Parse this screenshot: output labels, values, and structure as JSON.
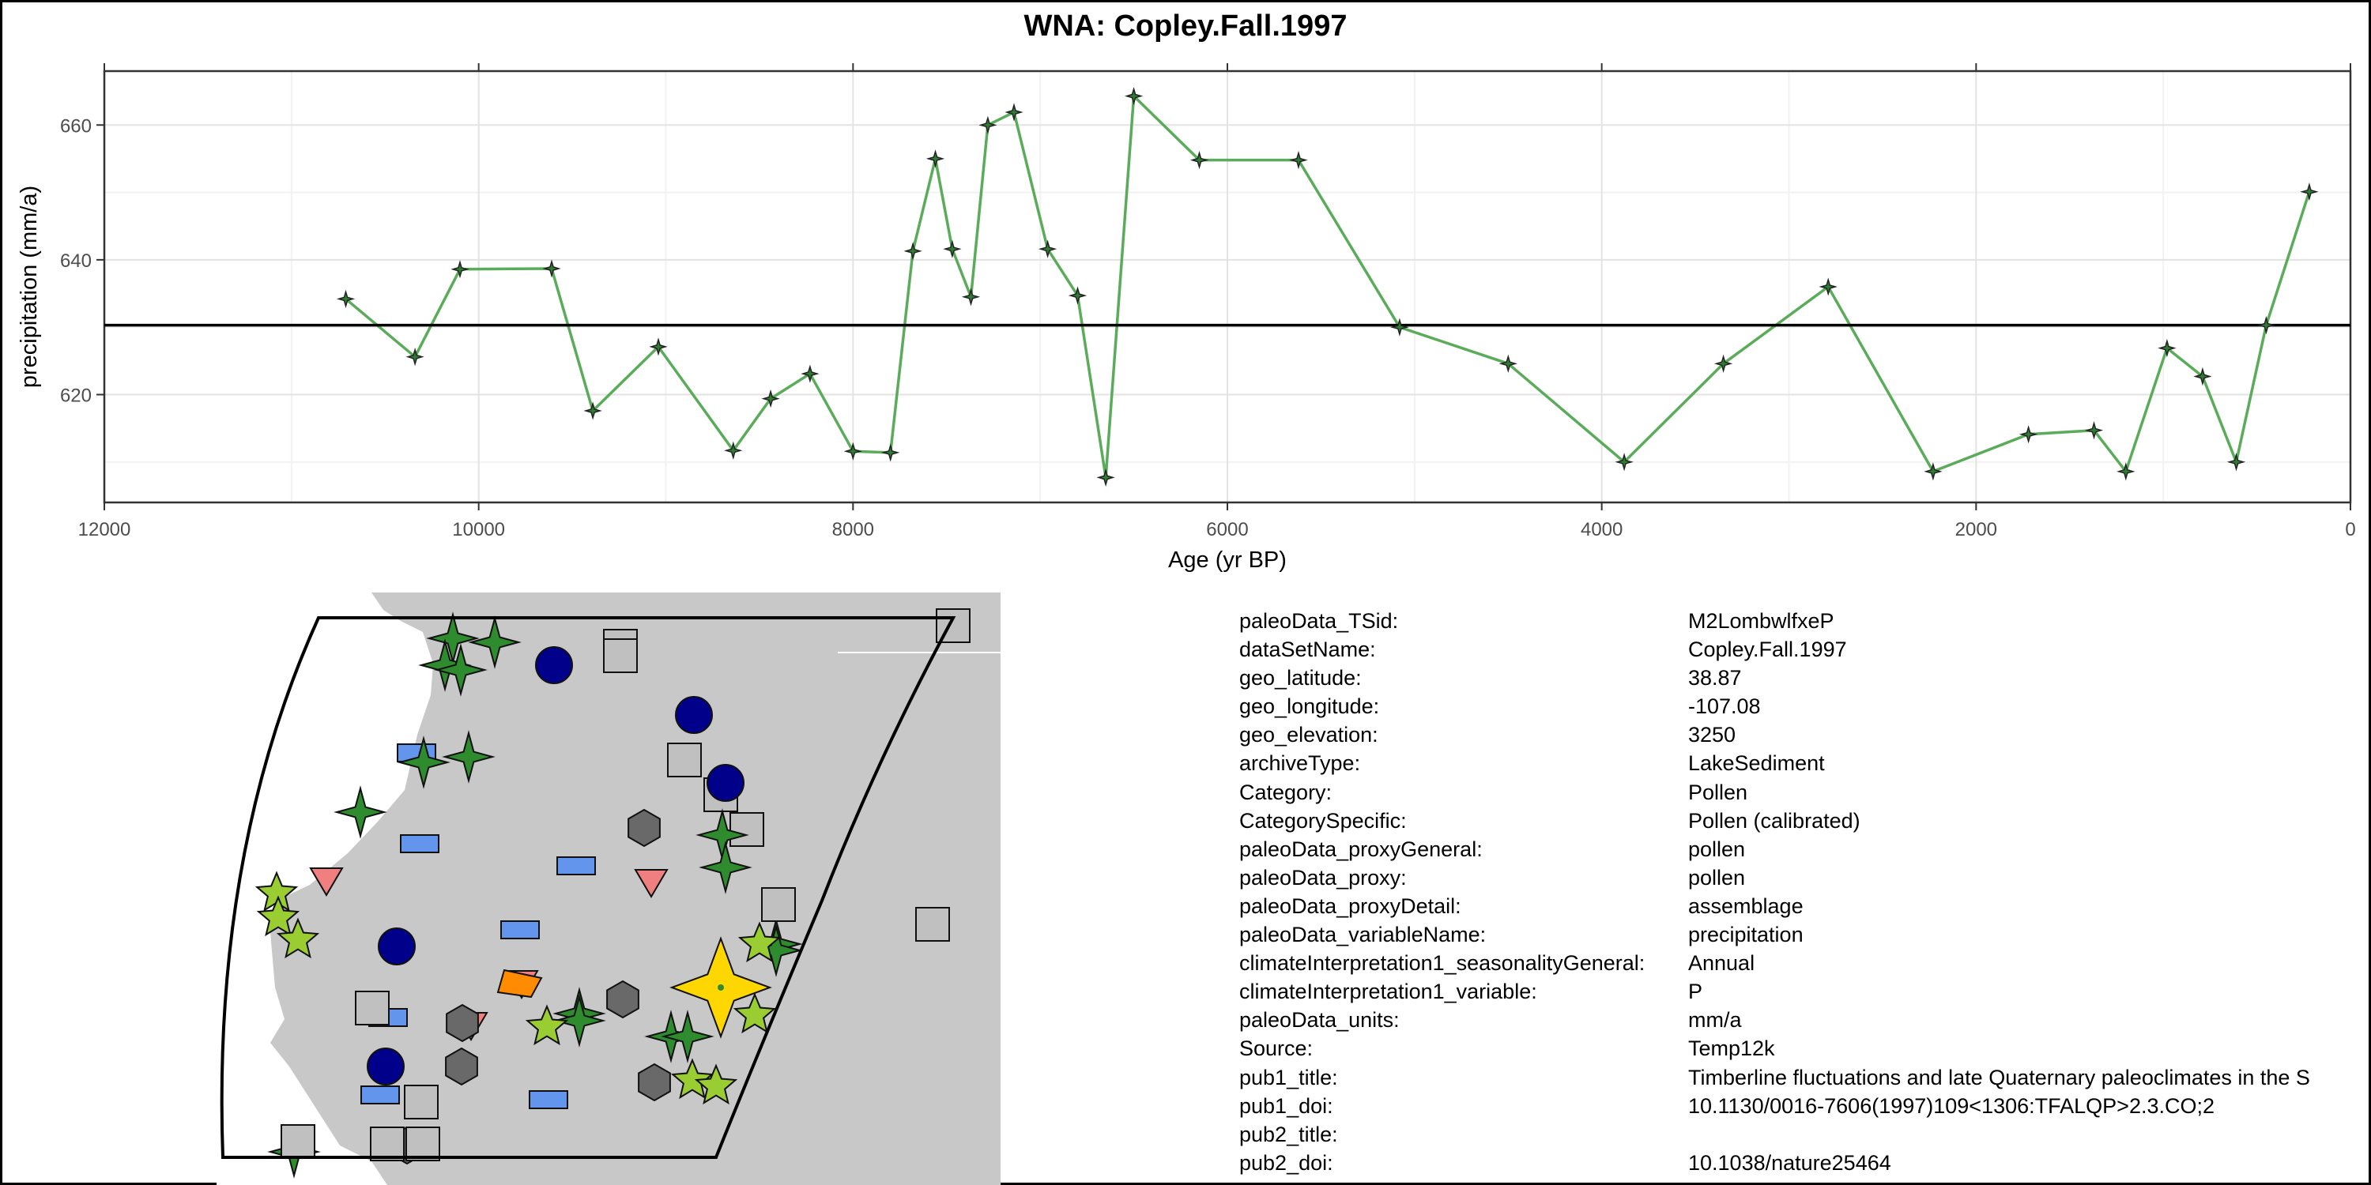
{
  "chart_data": {
    "type": "line",
    "title": "WNA: Copley.Fall.1997",
    "xlabel": "Age (yr BP)",
    "ylabel": "precipitation (mm/a)",
    "xlim": [
      12000,
      0
    ],
    "xaxis_reversed": true,
    "ylim": [
      604,
      668
    ],
    "x_ticks": [
      12000,
      10000,
      8000,
      6000,
      4000,
      2000,
      0
    ],
    "y_ticks": [
      620,
      640,
      660
    ],
    "grid": true,
    "reference_line_y": 630.3,
    "series": [
      {
        "color": "#5aab5a",
        "marker_color": "#2e7d32",
        "x": [
          10710,
          10340,
          10100,
          9610,
          9390,
          9040,
          8640,
          8440,
          8230,
          8000,
          7800,
          7680,
          7560,
          7470,
          7370,
          7280,
          7140,
          6960,
          6800,
          6650,
          6500,
          6150,
          5620,
          5080,
          4500,
          3880,
          3350,
          2790,
          2230,
          1720,
          1370,
          1200,
          980,
          790,
          610,
          450,
          220
        ],
        "y": [
          634.2,
          625.6,
          638.6,
          638.7,
          617.6,
          627.1,
          611.7,
          619.4,
          623.1,
          611.6,
          611.4,
          641.3,
          655.0,
          641.6,
          634.5,
          660.0,
          661.9,
          641.6,
          634.7,
          607.7,
          664.3,
          654.8,
          654.8,
          630.0,
          624.6,
          610.0,
          624.6,
          636.0,
          608.6,
          614.1,
          614.7,
          608.6,
          626.9,
          622.7,
          610.0,
          630.3,
          650.1
        ]
      }
    ]
  },
  "map": {
    "background": "#c8c8c8",
    "ocean_color": "#ffffff",
    "colors": {
      "dark_green": "#2e8b2e",
      "light_green": "#9acd32",
      "navy": "#00008b",
      "gray_square": "#c0c0c0",
      "dark_hex": "#696969",
      "blue_rect": "#6495ed",
      "pink_triangle": "#f08080",
      "orange": "#ff8c00",
      "highlight": "#ffd700"
    }
  },
  "metadata": [
    {
      "key": "paleoData_TSid:",
      "value": "M2LombwlfxeP"
    },
    {
      "key": "dataSetName:",
      "value": "Copley.Fall.1997"
    },
    {
      "key": "geo_latitude:",
      "value": "38.87"
    },
    {
      "key": "geo_longitude:",
      "value": "-107.08"
    },
    {
      "key": "geo_elevation:",
      "value": "3250"
    },
    {
      "key": "archiveType:",
      "value": "LakeSediment"
    },
    {
      "key": "Category:",
      "value": "Pollen"
    },
    {
      "key": "CategorySpecific:",
      "value": "Pollen (calibrated)"
    },
    {
      "key": "paleoData_proxyGeneral:",
      "value": "pollen"
    },
    {
      "key": "paleoData_proxy:",
      "value": "pollen"
    },
    {
      "key": "paleoData_proxyDetail:",
      "value": "assemblage"
    },
    {
      "key": "paleoData_variableName:",
      "value": "precipitation"
    },
    {
      "key": "climateInterpretation1_seasonalityGeneral:",
      "value": "Annual"
    },
    {
      "key": "climateInterpretation1_variable:",
      "value": "P"
    },
    {
      "key": "paleoData_units:",
      "value": "mm/a"
    },
    {
      "key": "Source:",
      "value": "Temp12k"
    },
    {
      "key": "pub1_title:",
      "value": "Timberline fluctuations and late Quaternary paleoclimates in the S"
    },
    {
      "key": "pub1_doi:",
      "value": "10.1130/0016-7606(1997)109<1306:TFALQP>2.3.CO;2"
    },
    {
      "key": "pub2_title:",
      "value": ""
    },
    {
      "key": "pub2_doi:",
      "value": "10.1038/nature25464"
    }
  ]
}
